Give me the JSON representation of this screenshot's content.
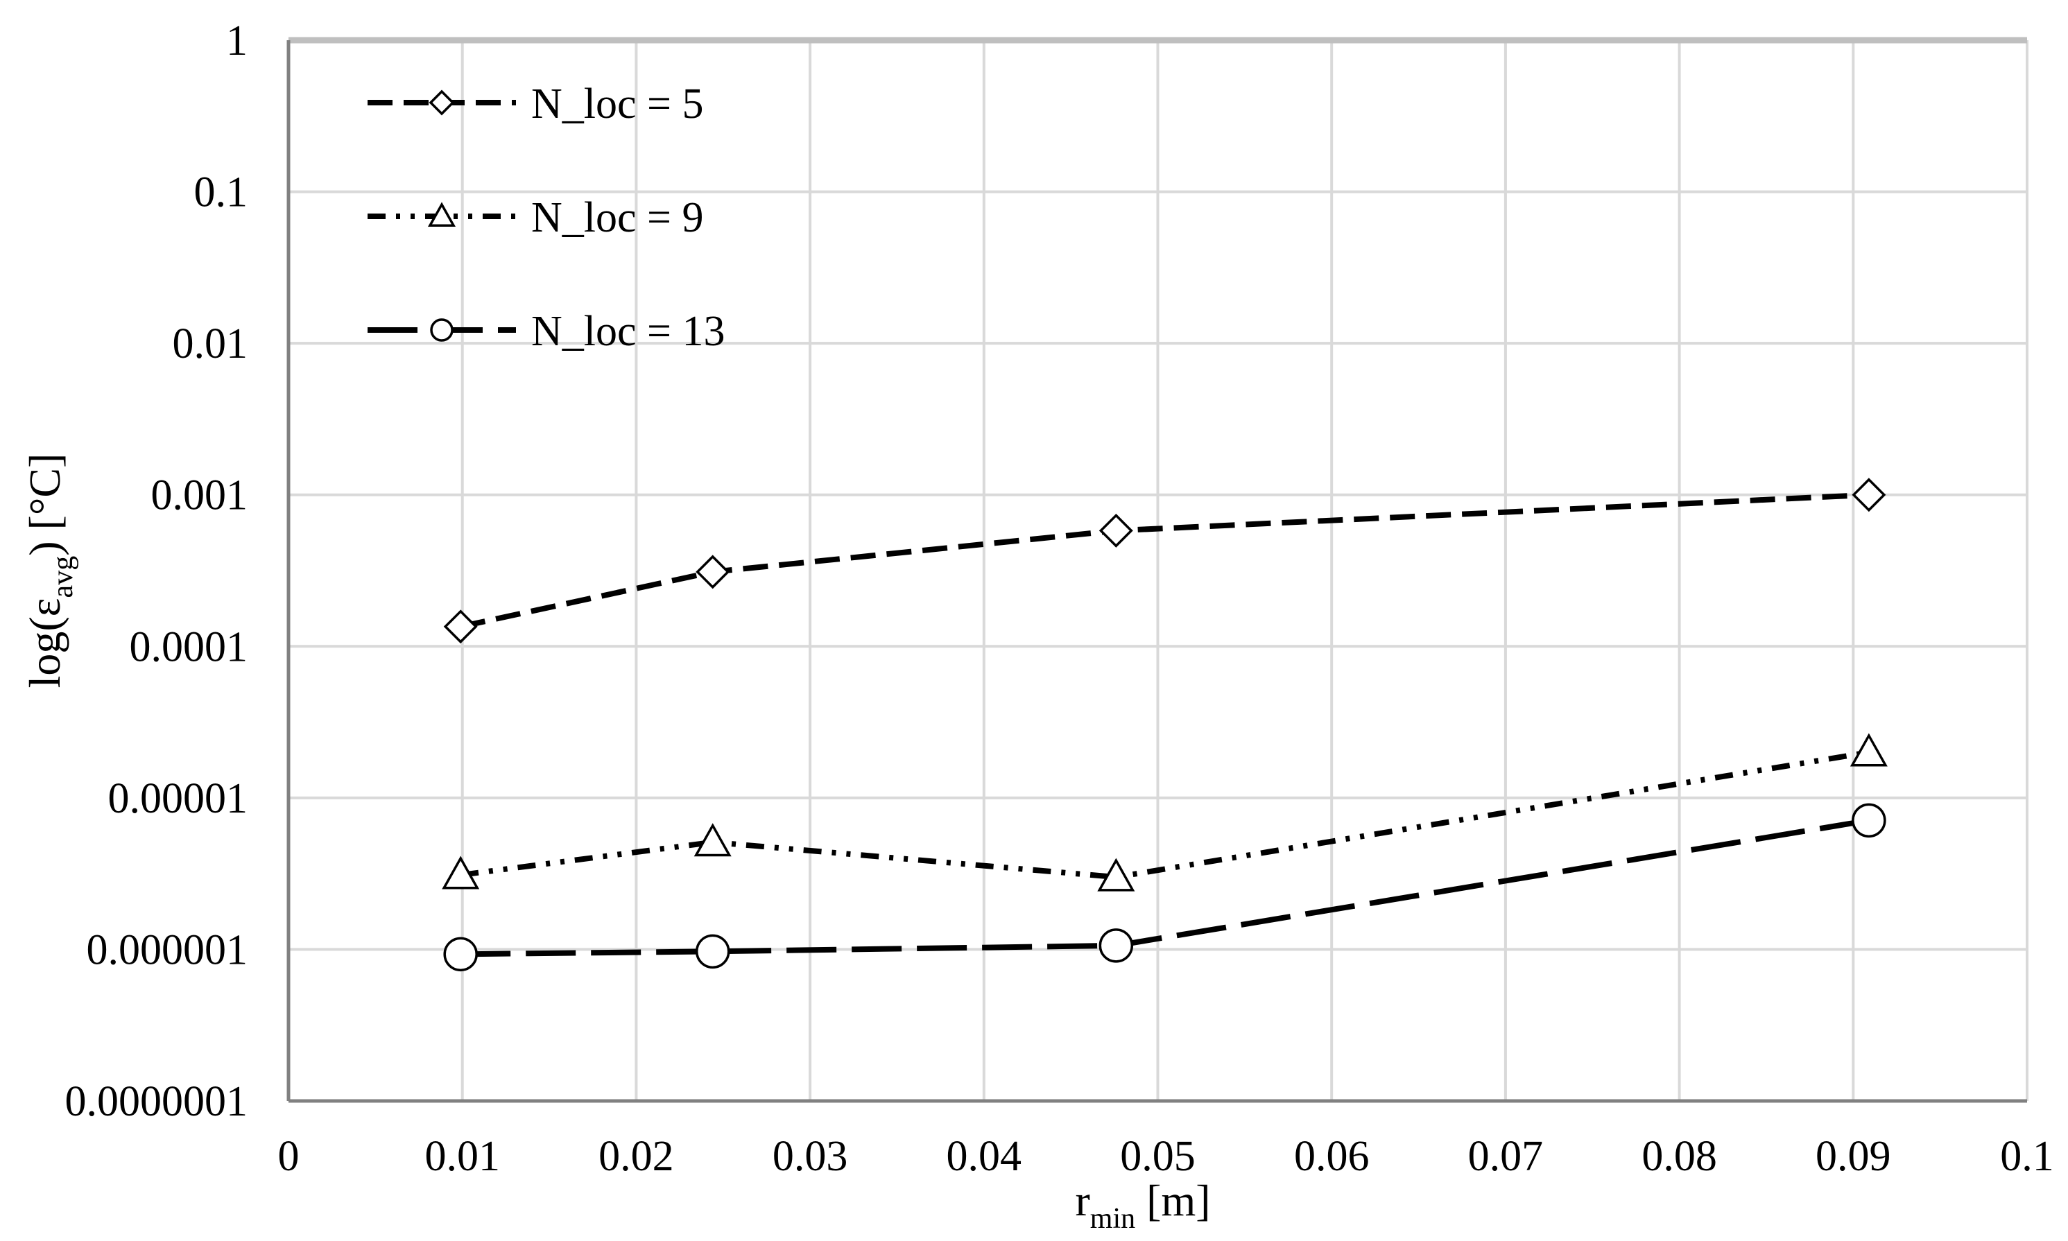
{
  "chart_data": {
    "type": "line",
    "title": "",
    "xlabel": {
      "main": "r",
      "subscript": "min",
      "suffix": " [m]"
    },
    "ylabel": {
      "prefix": "log(ε",
      "subscript": "avg",
      "suffix": ") [°C]"
    },
    "xlim": [
      0,
      0.1
    ],
    "ylim": [
      1e-07,
      1
    ],
    "y_scale": "log",
    "x_ticks": [
      "0",
      "0.01",
      "0.02",
      "0.03",
      "0.04",
      "0.05",
      "0.06",
      "0.07",
      "0.08",
      "0.09",
      "0.1"
    ],
    "y_ticks": [
      "0.0000001",
      "0.000001",
      "0.00001",
      "0.0001",
      "0.001",
      "0.01",
      "0.1",
      "1"
    ],
    "grid": true,
    "legend_position": "top-left",
    "series": [
      {
        "name": "N_loc = 5",
        "marker": "diamond",
        "line_style": "short-dash",
        "x": [
          0.0099,
          0.0244,
          0.0476,
          0.0909
        ],
        "y": [
          0.000135,
          0.00031,
          0.00058,
          0.001
        ]
      },
      {
        "name": "N_loc = 9",
        "marker": "triangle",
        "line_style": "dash-dot-dot",
        "x": [
          0.0099,
          0.0244,
          0.0476,
          0.0909
        ],
        "y": [
          3.1e-06,
          5.1e-06,
          3e-06,
          2e-05
        ]
      },
      {
        "name": "N_loc = 13",
        "marker": "circle",
        "line_style": "long-dash",
        "x": [
          0.0099,
          0.0244,
          0.0476,
          0.0909
        ],
        "y": [
          9.3e-07,
          9.7e-07,
          1.06e-06,
          7.1e-06
        ]
      }
    ]
  },
  "colors": {
    "background": "#ffffff",
    "grid": "#d9d9d9",
    "plot_border_top": "#bfbfbf",
    "axes": "#808080",
    "series": "#000000"
  }
}
